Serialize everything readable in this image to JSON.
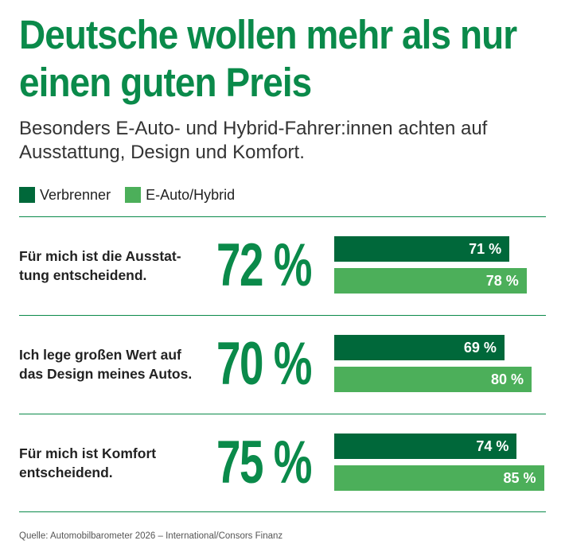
{
  "title": "Deutsche wollen mehr als nur einen guten Preis",
  "subtitle": "Besonders E-Auto- und Hybrid-Fahrer:innen achten auf Ausstattung, Design und Komfort.",
  "source": "Quelle: Automobilbarometer 2026 – International/Consors Finanz",
  "colors": {
    "accent": "#0a8a4a",
    "verbrenner": "#00683a",
    "eauto": "#4caf5a"
  },
  "chart_data": {
    "type": "bar",
    "legend": "top-left",
    "series": [
      {
        "name": "Verbrenner",
        "values": [
          71,
          69,
          74
        ]
      },
      {
        "name": "E-Auto/Hybrid",
        "values": [
          78,
          80,
          85
        ]
      }
    ],
    "categories": [
      "Für mich ist die Ausstattung entscheidend.",
      "Ich lege großen Wert auf das Design meines Autos.",
      "Für mich ist Komfort entscheidend."
    ],
    "rows": [
      {
        "label": "Für mich ist die Ausstat-tung entscheidend.",
        "total": "72 %",
        "v1": 71,
        "v1_label": "71 %",
        "v2": 78,
        "v2_label": "78 %"
      },
      {
        "label": "Ich lege großen Wert auf das Design meines Autos.",
        "total": "70 %",
        "v1": 69,
        "v1_label": "69 %",
        "v2": 80,
        "v2_label": "80 %"
      },
      {
        "label": "Für mich ist Komfort entscheidend.",
        "total": "75 %",
        "v1": 74,
        "v1_label": "74 %",
        "v2": 85,
        "v2_label": "85 %"
      }
    ],
    "totals": [
      72,
      70,
      75
    ],
    "xlim": [
      0,
      100
    ]
  }
}
